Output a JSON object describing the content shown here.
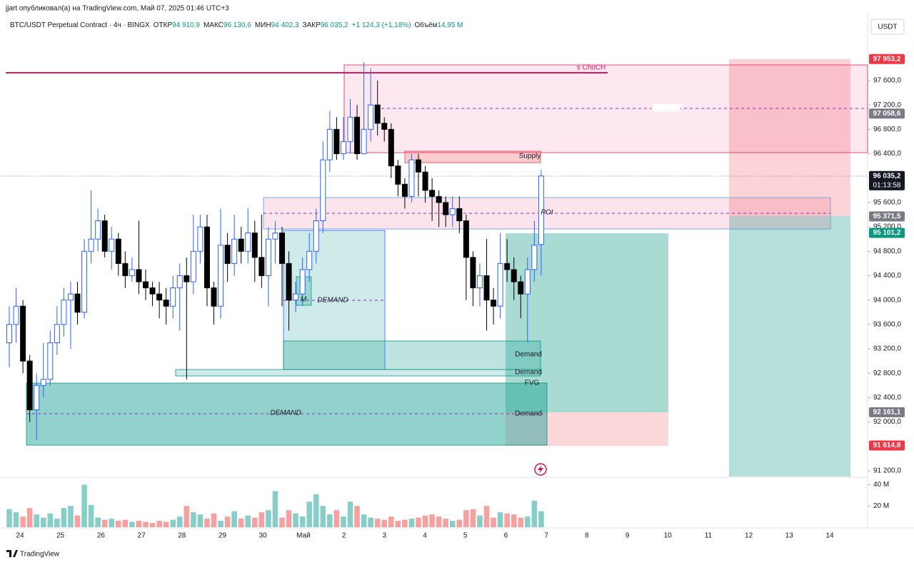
{
  "chart_data": {
    "type": "candlestick",
    "publisher": "jjart опубликовал(а) на TradingView.com, Май 07, 2025 01:46 UTC+3",
    "symbol": "BTC/USDT Perpetual Contract · 4ч · BINGX",
    "ohlc_legend": [
      {
        "label": "ОТКР",
        "text": "94 910,9"
      },
      {
        "label": "МАКС",
        "text": "96 130,6"
      },
      {
        "label": "МИН",
        "text": "94 402,3"
      },
      {
        "label": "ЗАКР",
        "text": "96 035,2"
      }
    ],
    "change": "+1 124,3 (+1,18%)",
    "volume_label": "Объём",
    "volume_text": "14,95 M",
    "currency": "USDT",
    "logo": "TradingView",
    "up_color": "#2962ff",
    "down_color": "#000000",
    "ylim": [
      91106,
      98360
    ],
    "yticks": [
      {
        "value": 91200,
        "label": "91 200,0"
      },
      {
        "value": 92000,
        "label": "92 000,0"
      },
      {
        "value": 92400,
        "label": "92 400,0"
      },
      {
        "value": 92800,
        "label": "92 800,0"
      },
      {
        "value": 93200,
        "label": "93 200,0"
      },
      {
        "value": 93600,
        "label": "93 600,0"
      },
      {
        "value": 94000,
        "label": "94 000,0"
      },
      {
        "value": 94400,
        "label": "94 400,0"
      },
      {
        "value": 94800,
        "label": "94 800,0"
      },
      {
        "value": 95200,
        "label": "95 200,0"
      },
      {
        "value": 95600,
        "label": "95 600,0"
      },
      {
        "value": 96400,
        "label": "96 400,0"
      },
      {
        "value": 96800,
        "label": "96 800,0"
      },
      {
        "value": 97200,
        "label": "97 200,0"
      },
      {
        "value": 97600,
        "label": "97 600,0"
      }
    ],
    "x_labels": [
      "24",
      "25",
      "26",
      "27",
      "28",
      "29",
      "30",
      "Май",
      "2",
      "3",
      "4",
      "5",
      "6",
      "7",
      "8",
      "9",
      "10",
      "11",
      "12",
      "13",
      "14"
    ],
    "candles": {
      "open": [
        93300,
        93600,
        93900,
        93000,
        92200,
        92600,
        92700,
        93300,
        93600,
        94000,
        94100,
        93800,
        94800,
        95000,
        95300,
        94800,
        95000,
        94600,
        94400,
        94500,
        94300,
        94200,
        94100,
        94000,
        93900,
        94200,
        94400,
        94300,
        94800,
        95200,
        94200,
        93900,
        94900,
        94600,
        95000,
        94800,
        95100,
        94700,
        94400,
        95000,
        95100,
        94600,
        94000,
        94100,
        94500,
        94800,
        95300,
        96300,
        96800,
        96400,
        96600,
        97000,
        96400,
        96800,
        97200,
        96900,
        96800,
        96200,
        95900,
        95700,
        96300,
        96100,
        95800,
        95700,
        95600,
        95400,
        95500,
        95300,
        94700,
        94200,
        94400,
        94000,
        93900,
        94600,
        94500,
        94300,
        94100,
        94500,
        94910.9
      ],
      "high": [
        93900,
        94200,
        94000,
        93100,
        92800,
        93300,
        93500,
        93900,
        94200,
        94300,
        94300,
        95000,
        95800,
        95500,
        95400,
        95200,
        95100,
        94800,
        94700,
        95300,
        94500,
        94300,
        94300,
        94200,
        94400,
        94600,
        94700,
        95400,
        95400,
        95400,
        94300,
        95500,
        95100,
        95400,
        95200,
        95500,
        95300,
        95400,
        95200,
        95300,
        95200,
        94800,
        94300,
        94700,
        95100,
        95500,
        96600,
        97100,
        97000,
        97000,
        97300,
        97200,
        97900,
        97800,
        97600,
        97000,
        96900,
        96300,
        96000,
        96400,
        96400,
        96200,
        96000,
        95800,
        95700,
        95700,
        95700,
        95400,
        94800,
        94600,
        95000,
        94200,
        95100,
        95000,
        94700,
        94400,
        94700,
        95300,
        96130.6
      ],
      "low": [
        92900,
        93300,
        92800,
        92000,
        91700,
        92400,
        92600,
        93100,
        93400,
        93200,
        93600,
        93700,
        94600,
        94800,
        94700,
        94500,
        94400,
        94200,
        94300,
        94100,
        94000,
        93900,
        93700,
        93600,
        93700,
        93500,
        92700,
        94100,
        94600,
        93900,
        93600,
        93700,
        94300,
        94400,
        94600,
        94600,
        94300,
        94200,
        93900,
        94600,
        93900,
        93500,
        93800,
        93900,
        94300,
        94600,
        95100,
        96100,
        96300,
        96300,
        96400,
        96300,
        96400,
        96600,
        96700,
        96600,
        96000,
        95700,
        95500,
        95600,
        95700,
        95600,
        95300,
        95200,
        95200,
        95200,
        95100,
        94000,
        93900,
        93900,
        93500,
        93600,
        93700,
        94300,
        94000,
        93700,
        93300,
        94300,
        94402.3
      ],
      "close": [
        93600,
        93900,
        93000,
        92200,
        92600,
        92700,
        93300,
        93600,
        94000,
        94100,
        93800,
        94800,
        95000,
        95300,
        94800,
        95000,
        94600,
        94400,
        94500,
        94300,
        94200,
        94100,
        94000,
        93900,
        94200,
        94400,
        94300,
        94800,
        95200,
        94200,
        93900,
        94900,
        94600,
        95000,
        94800,
        95100,
        94700,
        94400,
        95000,
        95100,
        94600,
        94000,
        94100,
        94500,
        94800,
        95300,
        96300,
        96800,
        96400,
        96600,
        97000,
        96400,
        96800,
        97200,
        96900,
        96800,
        96200,
        95900,
        95700,
        96300,
        96100,
        95800,
        95700,
        95600,
        95400,
        95500,
        95300,
        94700,
        94200,
        94400,
        94000,
        93900,
        94600,
        94500,
        94300,
        94100,
        94500,
        94900,
        96035.2
      ]
    },
    "volume": {
      "values": [
        17,
        14,
        10,
        18,
        12,
        9,
        13,
        8,
        18,
        20,
        11,
        40,
        21,
        9,
        7,
        8,
        6,
        7,
        5,
        6,
        5,
        4,
        6,
        5,
        7,
        10,
        20,
        14,
        12,
        8,
        13,
        6,
        10,
        15,
        8,
        11,
        9,
        14,
        16,
        34,
        9,
        16,
        13,
        10,
        24,
        31,
        20,
        12,
        16,
        10,
        24,
        20,
        12,
        9,
        8,
        7,
        10,
        6,
        7,
        8,
        9,
        11,
        12,
        10,
        8,
        6,
        7,
        16,
        17,
        11,
        20,
        9,
        14,
        13,
        12,
        9,
        10,
        25,
        15
      ],
      "ylim": [
        0,
        45
      ],
      "yticks": [
        {
          "value": 40,
          "label": "40 M"
        },
        {
          "value": 20,
          "label": "20 M"
        }
      ],
      "up_color": "rgba(38,166,154,0.55)",
      "down_color": "rgba(239,83,80,0.55)"
    },
    "price_labels": [
      {
        "value": 97953.2,
        "label": "97 953,2",
        "color": "#f23645"
      },
      {
        "value": 97058.6,
        "label": "97 058,6",
        "color": "#787b86"
      },
      {
        "value": 96035.2,
        "label": "96 035,2",
        "color": "#131722"
      },
      {
        "value": 95371.5,
        "label": "95 371,5",
        "color": "#787b86"
      },
      {
        "value": 95101.2,
        "label": "95 101,2",
        "color": "#089981"
      },
      {
        "value": 92161.1,
        "label": "92 161,1",
        "color": "#787b86"
      },
      {
        "value": 91614.8,
        "label": "91 614,8",
        "color": "#f23645"
      }
    ],
    "countdown": "01:13:58",
    "annotations": {
      "choch": "s ChoCH",
      "supply_big": "SUPPLY",
      "supply_small": "Supply",
      "poi": "POI",
      "m": "M",
      "demand_mid": "DEMAND",
      "demand_1": "Demand",
      "demand_2": "Demand",
      "fvg": "FVG",
      "demand_3": "Demand",
      "demand_big": "DEMAND"
    }
  }
}
